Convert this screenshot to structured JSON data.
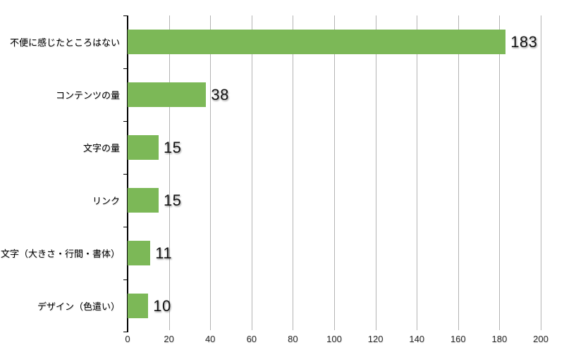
{
  "chart_data": {
    "type": "bar",
    "orientation": "horizontal",
    "title": "",
    "xlabel": "",
    "ylabel": "",
    "categories": [
      "不便に感じたところはない",
      "コンテンツの量",
      "文字の量",
      "リンク",
      "文字（大きさ・行間・書体）",
      "デザイン（色遣い）"
    ],
    "values": [
      183,
      38,
      15,
      15,
      11,
      10
    ],
    "xlim": [
      0,
      200
    ],
    "x_ticks": [
      0,
      20,
      40,
      60,
      80,
      100,
      120,
      140,
      160,
      180,
      200
    ],
    "grid": true,
    "legend": false,
    "bar_color": "#7cb857",
    "grid_color": "#b3b3b3",
    "axis_color": "#000000",
    "label_color": "#000000",
    "background": "#ffffff"
  }
}
